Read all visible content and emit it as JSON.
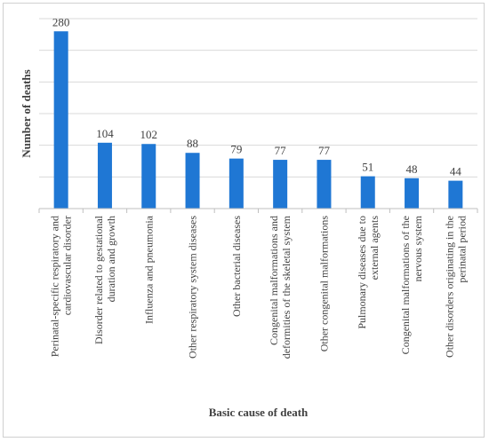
{
  "chart_data": {
    "type": "bar",
    "categories": [
      [
        "Perinatal-specific respiratory and",
        "cardiovascular disorder"
      ],
      [
        "Disorder related to gestational",
        "duration and growth"
      ],
      [
        "Influenza and pneumonia"
      ],
      [
        "Other respiratory system diseases"
      ],
      [
        "Other bacterial diseases"
      ],
      [
        "Congenital malformations and",
        "deformities of the skeletal system"
      ],
      [
        "Other congenital malformations"
      ],
      [
        "Pulmonary diseases due to",
        "external agents"
      ],
      [
        "Congenital malformations of the",
        "nervous system"
      ],
      [
        "Other disorders originating in the",
        "perinatal period"
      ]
    ],
    "values": [
      280,
      104,
      102,
      88,
      79,
      77,
      77,
      51,
      48,
      44
    ],
    "xlabel": "Basic cause of death",
    "ylabel": "Number of deaths",
    "ylim": [
      0,
      300
    ],
    "grid": true,
    "bar_color": "#1f77d4",
    "grid_color": "#d9d9d9",
    "axis_color": "#bfbfbf"
  }
}
